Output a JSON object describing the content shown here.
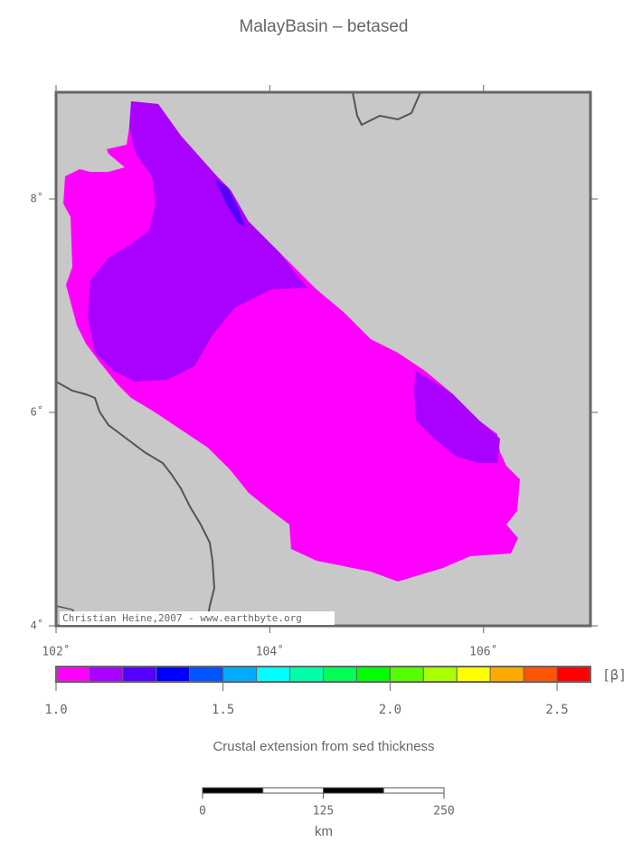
{
  "title": "MalayBasin – betased",
  "map": {
    "lonlim": [
      102,
      107
    ],
    "latlim": [
      4,
      9
    ],
    "lonticks": [
      {
        "value": 102,
        "label": "102˚"
      },
      {
        "value": 104,
        "label": "104˚"
      },
      {
        "value": 106,
        "label": "106˚"
      }
    ],
    "latticks": [
      {
        "value": 4,
        "label": "4˚"
      },
      {
        "value": 6,
        "label": "6˚"
      },
      {
        "value": 8,
        "label": "8˚"
      }
    ],
    "credit": "Christian Heine,2007 - www.earthbyte.org"
  },
  "colorbar": {
    "range": [
      1.0,
      2.6
    ],
    "label": "[β]",
    "colors": [
      "#ff00ff",
      "#aa00ff",
      "#5500ff",
      "#0000ff",
      "#0055ff",
      "#00aaff",
      "#00ffff",
      "#00ffaa",
      "#00ff55",
      "#00ff00",
      "#55ff00",
      "#aaff00",
      "#ffff00",
      "#ffaa00",
      "#ff5500",
      "#ff0000"
    ],
    "ticks": [
      {
        "value": 1.0,
        "label": "1.0"
      },
      {
        "value": 1.5,
        "label": "1.5"
      },
      {
        "value": 2.0,
        "label": "2.0"
      },
      {
        "value": 2.5,
        "label": "2.5"
      }
    ],
    "caption": "Crustal extension from sed thickness"
  },
  "scalebar": {
    "ticks": [
      0,
      125,
      250
    ],
    "unit": "km"
  }
}
